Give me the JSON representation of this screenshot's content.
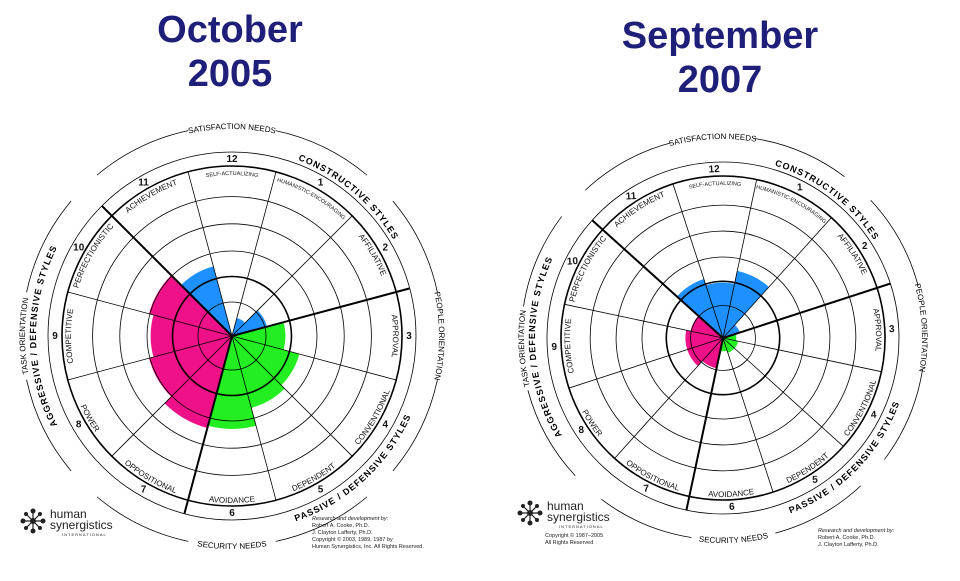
{
  "titles": {
    "left": [
      "October",
      "2005"
    ],
    "right": [
      "September",
      "2007"
    ]
  },
  "labels": {
    "satisfaction_needs": "SATISFACTION NEEDS",
    "security_needs": "SECURITY NEEDS",
    "constructive_styles": "CONSTRUCTIVE STYLES",
    "passive_defensive": "PASSIVE / DEFENSIVE STYLES",
    "aggressive_defensive": "AGGRESSIVE / DEFENSIVE STYLES",
    "task_orientation": "TASK ORIENTATION",
    "people_orientation": "PEOPLE ORIENTATION"
  },
  "segments": [
    {
      "number": "1",
      "name": "HUMANISTIC-ENCOURAGING"
    },
    {
      "number": "2",
      "name": "AFFILIATIVE"
    },
    {
      "number": "3",
      "name": "APPROVAL"
    },
    {
      "number": "4",
      "name": "CONVENTIONAL"
    },
    {
      "number": "5",
      "name": "DEPENDENT"
    },
    {
      "number": "6",
      "name": "AVOIDANCE"
    },
    {
      "number": "7",
      "name": "OPPOSITIONAL"
    },
    {
      "number": "8",
      "name": "POWER"
    },
    {
      "number": "9",
      "name": "COMPETITIVE"
    },
    {
      "number": "10",
      "name": "PERFECTIONISTIC"
    },
    {
      "number": "11",
      "name": "ACHIEVEMENT"
    },
    {
      "number": "12",
      "name": "SELF-ACTUALIZING"
    }
  ],
  "colors": {
    "constructive": "#1e90ff",
    "passive": "#22ee22",
    "aggressive": "#ee1188",
    "title": "#1f1f7a"
  },
  "circumplex": [
    {
      "id": "october-2005",
      "levels": [
        0.4,
        0.78,
        1.15,
        1.5,
        1.6,
        2.0,
        2.05,
        1.85,
        1.75,
        1.85,
        1.55,
        0.0
      ],
      "logo": {
        "line1": "human",
        "line2": "synergistics",
        "sub": "INTERNATIONAL"
      },
      "credits": [
        "Research and development by:",
        "Robert A. Cooke, Ph.D.",
        "J. Clayton Lafferty, Ph.D.",
        "Copyright © 2003, 1989, 1987 by",
        "Human Synergistics, Inc. All Rights Reserved."
      ]
    },
    {
      "id": "september-2007",
      "levels": [
        1.55,
        0.4,
        0.3,
        0.35,
        0.35,
        0.3,
        0.7,
        0.85,
        0.85,
        0.75,
        1.4,
        1.25
      ],
      "logo": {
        "line1": "human",
        "line2": "synergistics",
        "sub": "INTERNATIONAL"
      },
      "credits_left": [
        "Copyright © 1987–2005",
        "All Rights Reserved"
      ],
      "credits": [
        "Research and development by:",
        "Robert A. Cooke, Ph.D.",
        "J. Clayton Lafferty, Ph.D."
      ]
    }
  ]
}
